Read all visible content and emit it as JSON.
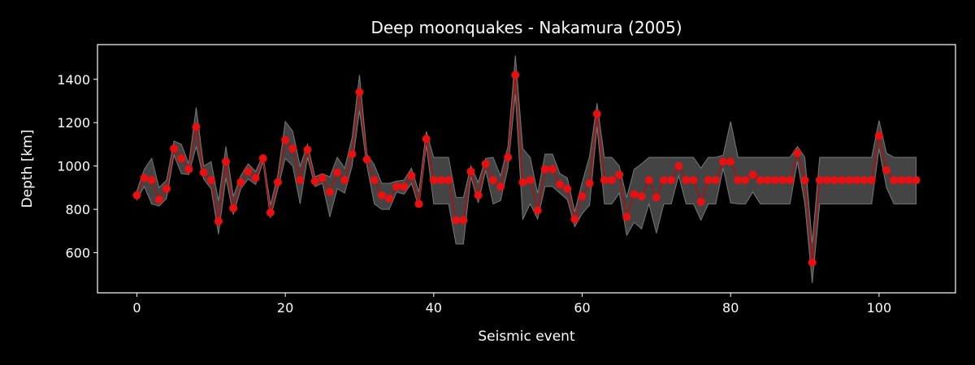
{
  "chart_data": {
    "type": "line",
    "title": "Deep moonquakes - Nakamura (2005)",
    "xlabel": "Seismic event",
    "ylabel": "Depth [km]",
    "xlim": [
      -5.3,
      110.3
    ],
    "ylim": [
      415,
      1560
    ],
    "xticks": [
      0,
      20,
      40,
      60,
      80,
      100
    ],
    "yticks": [
      600,
      800,
      1000,
      1200,
      1400
    ],
    "grid": false,
    "legend": "none",
    "colors": {
      "background": "#000000",
      "line": "#cc0000",
      "marker": "#e81010",
      "band_fill": "#444444",
      "band_edge": "#777777",
      "frame": "#ffffff",
      "text": "#ffffff"
    },
    "x": [
      0,
      1,
      2,
      3,
      4,
      5,
      6,
      7,
      8,
      9,
      10,
      11,
      12,
      13,
      14,
      15,
      16,
      17,
      18,
      19,
      20,
      21,
      22,
      23,
      24,
      25,
      26,
      27,
      28,
      29,
      30,
      31,
      32,
      33,
      34,
      35,
      36,
      37,
      38,
      39,
      40,
      41,
      42,
      43,
      44,
      45,
      46,
      47,
      48,
      49,
      50,
      51,
      52,
      53,
      54,
      55,
      56,
      57,
      58,
      59,
      60,
      61,
      62,
      63,
      64,
      65,
      66,
      67,
      68,
      69,
      70,
      71,
      72,
      73,
      74,
      75,
      76,
      77,
      78,
      79,
      80,
      81,
      82,
      83,
      84,
      85,
      86,
      87,
      88,
      89,
      90,
      91,
      92,
      93,
      94,
      95,
      96,
      97,
      98,
      99,
      100,
      101,
      102,
      103,
      104,
      105
    ],
    "depth": [
      865,
      945,
      935,
      845,
      895,
      1080,
      1035,
      985,
      1180,
      970,
      935,
      745,
      1020,
      805,
      925,
      975,
      945,
      1035,
      785,
      925,
      1120,
      1080,
      935,
      1075,
      930,
      945,
      880,
      970,
      935,
      1055,
      1340,
      1030,
      935,
      865,
      850,
      905,
      905,
      955,
      825,
      1125,
      935,
      935,
      935,
      750,
      750,
      975,
      865,
      1010,
      935,
      905,
      1040,
      1420,
      925,
      935,
      795,
      985,
      985,
      915,
      895,
      755,
      860,
      920,
      1240,
      935,
      935,
      960,
      765,
      870,
      860,
      935,
      855,
      935,
      935,
      1000,
      935,
      935,
      835,
      935,
      935,
      1020,
      1020,
      935,
      935,
      960,
      935,
      935,
      935,
      935,
      935,
      1060,
      935,
      555,
      935,
      935,
      935,
      935,
      935,
      935,
      935,
      935,
      1140,
      980,
      935,
      935,
      935,
      935
    ],
    "depth_upper": [
      885,
      985,
      1035,
      900,
      935,
      1115,
      1100,
      1010,
      1270,
      1000,
      1020,
      840,
      1090,
      860,
      955,
      1010,
      975,
      1050,
      820,
      960,
      1205,
      1160,
      1000,
      1100,
      950,
      965,
      950,
      1040,
      990,
      1130,
      1420,
      1055,
      1005,
      920,
      920,
      930,
      935,
      990,
      880,
      1160,
      1040,
      1040,
      1040,
      855,
      855,
      1000,
      925,
      1035,
      1040,
      955,
      1090,
      1510,
      1080,
      1040,
      875,
      1055,
      1055,
      965,
      945,
      790,
      925,
      1045,
      1290,
      1040,
      1040,
      1000,
      855,
      985,
      1010,
      1040,
      1040,
      1040,
      1040,
      1040,
      1040,
      1040,
      990,
      1040,
      1040,
      1050,
      1205,
      1040,
      1040,
      1040,
      1040,
      1040,
      1040,
      1040,
      1040,
      1090,
      1040,
      645,
      1040,
      1040,
      1040,
      1040,
      1040,
      1040,
      1040,
      1040,
      1210,
      1060,
      1040,
      1040,
      1040,
      1040
    ],
    "depth_lower": [
      845,
      905,
      825,
      815,
      850,
      1050,
      965,
      960,
      1090,
      940,
      895,
      685,
      945,
      775,
      895,
      940,
      915,
      1020,
      760,
      895,
      1035,
      1000,
      825,
      1040,
      905,
      920,
      765,
      895,
      875,
      1000,
      1255,
      1000,
      825,
      800,
      800,
      880,
      870,
      920,
      810,
      1095,
      825,
      825,
      825,
      640,
      640,
      950,
      830,
      980,
      825,
      840,
      990,
      1330,
      755,
      825,
      755,
      905,
      905,
      875,
      845,
      720,
      780,
      820,
      1180,
      825,
      825,
      875,
      680,
      740,
      710,
      825,
      690,
      825,
      825,
      955,
      825,
      825,
      750,
      825,
      825,
      990,
      830,
      825,
      825,
      880,
      825,
      825,
      825,
      825,
      825,
      1020,
      825,
      460,
      825,
      825,
      825,
      825,
      825,
      825,
      825,
      825,
      1080,
      900,
      825,
      825,
      825,
      825
    ]
  }
}
